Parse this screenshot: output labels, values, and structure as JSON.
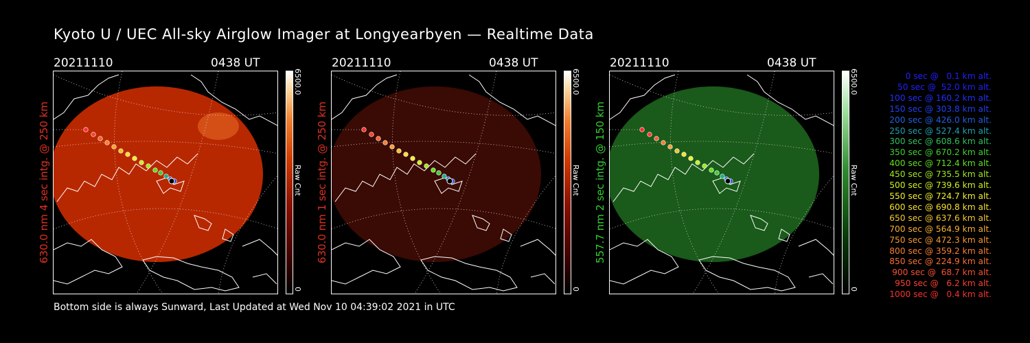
{
  "title": "Kyoto U / UEC All-sky Airglow Imager at Longyearbyen — Realtime Data",
  "footer": "Bottom side is always Sunward, Last Updated at Wed Nov 10 04:39:02 2021 in UTC",
  "panels": [
    {
      "date": "20211110",
      "time": "0438 UT",
      "label": "630.0 nm 4 sec intg. @ 250 km",
      "label_color": "#e03020",
      "cbar_max": "6500.0",
      "cbar_unit": "Raw Cnt",
      "cbar_min": "0",
      "colormap": "red",
      "brightness": "bright"
    },
    {
      "date": "20211110",
      "time": "0438 UT",
      "label": "630.0 nm 1 sec intg. @ 250 km",
      "label_color": "#e03020",
      "cbar_max": "6500.0",
      "cbar_unit": "Raw Cnt",
      "cbar_min": "0",
      "colormap": "red",
      "brightness": "dim"
    },
    {
      "date": "20211110",
      "time": "0438 UT",
      "label": "557.7 nm 2 sec intg. @ 150 km",
      "label_color": "#30d030",
      "cbar_max": "6500.0",
      "cbar_unit": "Raw Cnt",
      "cbar_min": "0",
      "colormap": "green",
      "brightness": "dim"
    }
  ],
  "legend": [
    {
      "text": "0 sec @   0.1 km alt.",
      "color": "#2020ff"
    },
    {
      "text": "50 sec @  52.0 km alt.",
      "color": "#2020ff"
    },
    {
      "text": "100 sec @ 160.2 km alt.",
      "color": "#2030ff"
    },
    {
      "text": "150 sec @ 303.8 km alt.",
      "color": "#2040f0"
    },
    {
      "text": "200 sec @ 426.0 km alt.",
      "color": "#2060e0"
    },
    {
      "text": "250 sec @ 527.4 km alt.",
      "color": "#20a0b0"
    },
    {
      "text": "300 sec @ 608.6 km alt.",
      "color": "#30c060"
    },
    {
      "text": "350 sec @ 670.2 km alt.",
      "color": "#40d030"
    },
    {
      "text": "400 sec @ 712.4 km alt.",
      "color": "#60e020"
    },
    {
      "text": "450 sec @ 735.5 km alt.",
      "color": "#a0e820"
    },
    {
      "text": "500 sec @ 739.6 km alt.",
      "color": "#d0f020"
    },
    {
      "text": "550 sec @ 724.7 km alt.",
      "color": "#f0f030"
    },
    {
      "text": "600 sec @ 690.8 km alt.",
      "color": "#f8e030"
    },
    {
      "text": "650 sec @ 637.6 km alt.",
      "color": "#f8c830"
    },
    {
      "text": "700 sec @ 564.9 km alt.",
      "color": "#f8b030"
    },
    {
      "text": "750 sec @ 472.3 km alt.",
      "color": "#f89830"
    },
    {
      "text": "800 sec @ 359.2 km alt.",
      "color": "#f88030"
    },
    {
      "text": "850 sec @ 224.9 km alt.",
      "color": "#f87030"
    },
    {
      "text": "900 sec @  68.7 km alt.",
      "color": "#f85030"
    },
    {
      "text": "950 sec @   6.2 km alt.",
      "color": "#f84030"
    },
    {
      "text": "1000 sec @   0.4 km alt.",
      "color": "#f83030"
    }
  ]
}
